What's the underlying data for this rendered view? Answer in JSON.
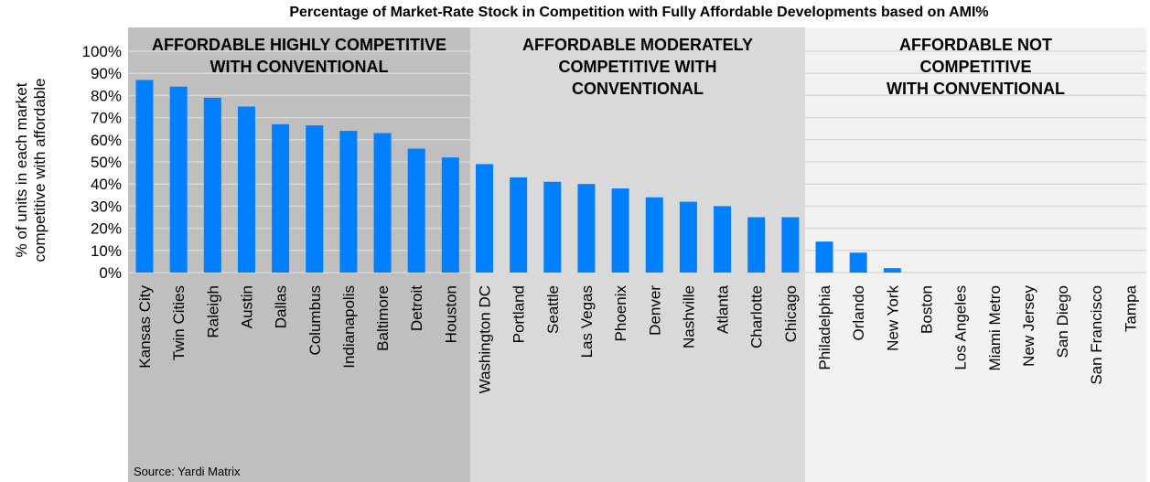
{
  "chart_data": {
    "type": "bar",
    "title": "Percentage of Market-Rate Stock in Competition with Fully Affordable Developments based on AMI%",
    "ylabel": "% of units in each market competitive with affordable",
    "xlabel": "",
    "ylim": [
      0,
      100
    ],
    "yticks": [
      "0%",
      "10%",
      "20%",
      "30%",
      "40%",
      "50%",
      "60%",
      "70%",
      "80%",
      "90%",
      "100%"
    ],
    "grid": true,
    "bar_color": "#007FFF",
    "categories": [
      "Kansas City",
      "Twin Cities",
      "Raleigh",
      "Austin",
      "Dallas",
      "Columbus",
      "Indianapolis",
      "Baltimore",
      "Detroit",
      "Houston",
      "Washington DC",
      "Portland",
      "Seattle",
      "Las Vegas",
      "Phoenix",
      "Denver",
      "Nashville",
      "Atlanta",
      "Charlotte",
      "Chicago",
      "Philadelphia",
      "Orlando",
      "New York",
      "Boston",
      "Los Angeles",
      "Miami Metro",
      "New Jersey",
      "San Diego",
      "San Francisco",
      "Tampa"
    ],
    "values": [
      87,
      84,
      79,
      75,
      67,
      66.5,
      64,
      63,
      56,
      52,
      49,
      43,
      41,
      40,
      38,
      34,
      32,
      30,
      25,
      25,
      14,
      9,
      2,
      0,
      0,
      0,
      0,
      0,
      0,
      0
    ],
    "regions": [
      {
        "label": [
          "AFFORDABLE HIGHLY COMPETITIVE",
          "WITH CONVENTIONAL"
        ],
        "from": 0,
        "to": 9,
        "color": "#BFBFBF"
      },
      {
        "label": [
          "AFFORDABLE MODERATELY",
          "COMPETITIVE WITH",
          "CONVENTIONAL"
        ],
        "from": 10,
        "to": 19,
        "color": "#D9D9D9"
      },
      {
        "label": [
          "AFFORDABLE NOT",
          "COMPETITIVE",
          "WITH CONVENTIONAL"
        ],
        "from": 20,
        "to": 29,
        "color": "#F2F2F2"
      }
    ]
  },
  "source": "Source: Yardi Matrix"
}
